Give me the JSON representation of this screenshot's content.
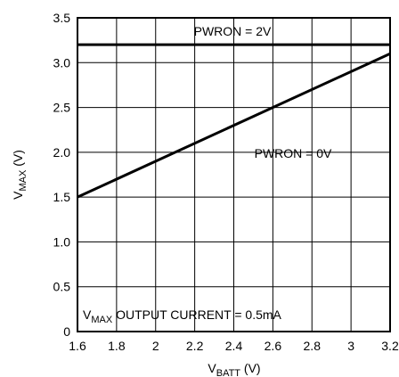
{
  "chart_data": {
    "type": "line",
    "title": "",
    "xlabel": {
      "main": "V",
      "sub": "BATT",
      "rest": " (V)"
    },
    "ylabel": {
      "main": "V",
      "sub": "MAX",
      "rest": " (V)"
    },
    "xlim": [
      1.6,
      3.2
    ],
    "ylim": [
      0,
      3.5
    ],
    "grid": true,
    "xticks": [
      1.6,
      1.8,
      2.0,
      2.2,
      2.4,
      2.6,
      2.8,
      3.0,
      3.2
    ],
    "xtick_labels": [
      "1.6",
      "1.8",
      "2",
      "2.2",
      "2.4",
      "2.6",
      "2.8",
      "3",
      "3.2"
    ],
    "yticks": [
      0,
      0.5,
      1.0,
      1.5,
      2.0,
      2.5,
      3.0,
      3.5
    ],
    "ytick_labels": [
      "0",
      "0.5",
      "1.0",
      "1.5",
      "2.0",
      "2.5",
      "3.0",
      "3.5"
    ],
    "series": [
      {
        "name": "PWRON = 2V",
        "x": [
          1.6,
          3.2
        ],
        "y": [
          3.2,
          3.2
        ]
      },
      {
        "name": "PWRON = 0V",
        "x": [
          1.6,
          3.2
        ],
        "y": [
          1.5,
          3.1
        ]
      }
    ],
    "annotation": {
      "main": "V",
      "sub": "MAX",
      "rest": " OUTPUT CURRENT = 0.5mA"
    }
  }
}
